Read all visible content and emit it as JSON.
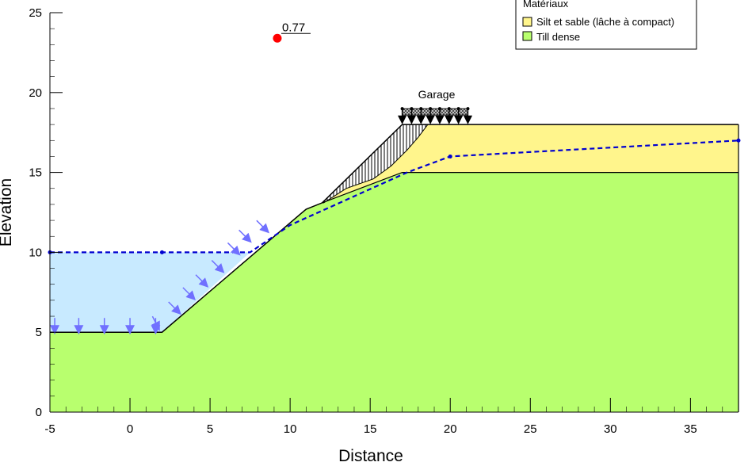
{
  "chart": {
    "xlabel": "Distance",
    "ylabel": "Elevation",
    "xlim": [
      -5,
      38
    ],
    "ylim": [
      0,
      25
    ],
    "x_ticks": [
      "-5",
      "0",
      "5",
      "10",
      "15",
      "20",
      "25",
      "30",
      "35"
    ],
    "y_ticks": [
      "0",
      "5",
      "10",
      "15",
      "20",
      "25"
    ]
  },
  "factor_of_safety": {
    "label": "0.77",
    "center": [
      9.2,
      23.4
    ],
    "color": "#ff0000"
  },
  "surcharge": {
    "label": "Garage",
    "x_range": [
      17,
      21.1
    ],
    "elevation": 18
  },
  "legend": {
    "title": "Matériaux",
    "items": [
      {
        "label": "Silt et sable (lâche à compact)",
        "color": "#fff58c"
      },
      {
        "label": "Till dense",
        "color": "#b8ff6e"
      }
    ]
  },
  "geometry": {
    "till_surface": [
      [
        -5,
        5
      ],
      [
        2,
        5
      ],
      [
        11,
        12.7
      ],
      [
        12,
        13.1
      ],
      [
        17,
        15
      ],
      [
        38,
        15
      ]
    ],
    "silt_region": [
      [
        12,
        13.1
      ],
      [
        17,
        18
      ],
      [
        38,
        18
      ],
      [
        38,
        15
      ],
      [
        17,
        15
      ]
    ],
    "water_polygon": [
      [
        -5,
        10
      ],
      [
        7.5,
        10
      ],
      [
        2,
        5
      ],
      [
        -5,
        5
      ]
    ],
    "slip_arc": [
      [
        12.1,
        13.1
      ],
      [
        13.5,
        14
      ],
      [
        15.2,
        14.6
      ],
      [
        16.3,
        15.4
      ],
      [
        17.3,
        16.4
      ],
      [
        18,
        17.2
      ],
      [
        18.6,
        18
      ]
    ],
    "piezometric_line": [
      [
        -5,
        10
      ],
      [
        2,
        10
      ],
      [
        7.5,
        10
      ],
      [
        10,
        11.7
      ],
      [
        17.3,
        15
      ],
      [
        20,
        16
      ],
      [
        38,
        17
      ]
    ]
  },
  "water_load_arrows": [
    [
      -4.7,
      5
    ],
    [
      -3.2,
      5
    ],
    [
      -1.6,
      5
    ],
    [
      0,
      5
    ],
    [
      1.6,
      5
    ],
    [
      1.8,
      5.2
    ],
    [
      3.1,
      6.2
    ],
    [
      4,
      7.1
    ],
    [
      4.8,
      7.9
    ],
    [
      5.8,
      8.8
    ],
    [
      6.8,
      9.9
    ],
    [
      7.5,
      10.7
    ],
    [
      8.6,
      11.3
    ]
  ],
  "colors": {
    "water": "#c8eaff",
    "till": "#b8ff6e",
    "silt": "#fff58c",
    "piezo": "#0000d0",
    "arrow": "#7070ff"
  }
}
